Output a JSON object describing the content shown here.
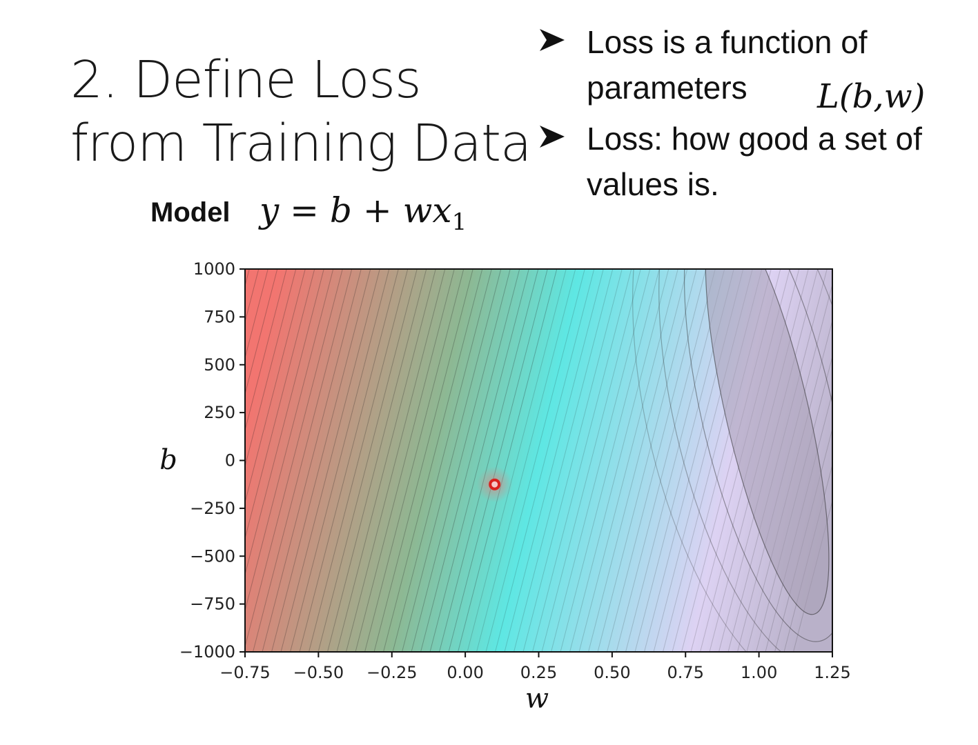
{
  "title": {
    "line1": "2. Define Loss",
    "line2": "from Training Data"
  },
  "bullets": [
    {
      "lines": [
        "Loss is a function of",
        "parameters"
      ]
    },
    {
      "lines": [
        "Loss: how good a set of",
        "values is."
      ]
    }
  ],
  "loss_formula": "L(b,w)",
  "model": {
    "label": "Model",
    "formula_main": "y = b + wx",
    "formula_sub": "1"
  },
  "chart_data": {
    "type": "heatmap",
    "subtype": "filled-contour",
    "xlabel": "w",
    "ylabel": "b",
    "xlim": [
      -0.75,
      1.25
    ],
    "ylim": [
      -1000,
      1000
    ],
    "x_ticks": [
      "−0.75",
      "−0.50",
      "−0.25",
      "0.00",
      "0.25",
      "0.50",
      "0.75",
      "1.00",
      "1.25"
    ],
    "y_ticks": [
      "1000",
      "750",
      "500",
      "250",
      "0",
      "−250",
      "−500",
      "−750",
      "−1000"
    ],
    "marked_point": {
      "w": 0.1,
      "b": -125,
      "color": "#d9221e"
    },
    "minimum_region_center": {
      "w": 1.0,
      "b": 250
    },
    "colormap": [
      "#f27570",
      "#8db893",
      "#5ee7e3",
      "#ddd2f3",
      "#b9b1c9"
    ],
    "grid": false
  }
}
